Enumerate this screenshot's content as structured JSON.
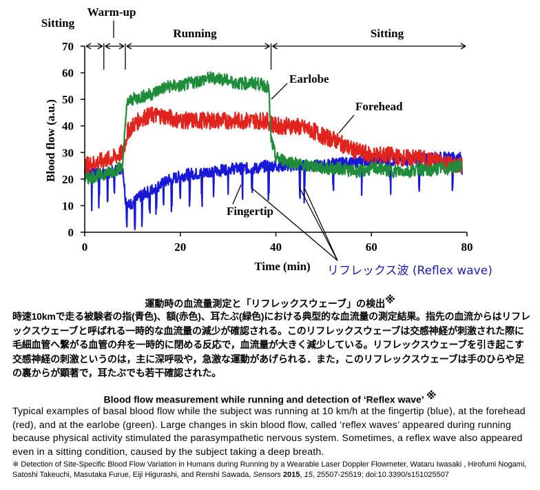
{
  "chart_data": {
    "type": "line",
    "xlabel": "Time (min)",
    "ylabel": "Blood flow (a.u.)",
    "xlim": [
      0,
      80
    ],
    "ylim": [
      0,
      70
    ],
    "xticks": [
      "0",
      "20",
      "40",
      "60",
      "80"
    ],
    "yticks": [
      "0",
      "10",
      "20",
      "30",
      "40",
      "50",
      "60",
      "70"
    ],
    "grid": false,
    "phases": [
      {
        "label": "Sitting",
        "start": 0,
        "end": 4
      },
      {
        "label": "Warm-up",
        "start": 4,
        "end": 8.5
      },
      {
        "label": "Running",
        "start": 8.5,
        "end": 39
      },
      {
        "label": "Sitting",
        "start": 39,
        "end": 80
      }
    ],
    "annotation": "リフレックス波 (Reflex wave)",
    "reflex_wave_times": [
      35,
      45,
      46
    ],
    "series": [
      {
        "name": "Earlobe",
        "color": "#1e8c3a",
        "x": [
          0,
          2,
          4,
          6,
          7,
          8,
          8.5,
          9,
          10,
          12,
          14,
          16,
          18,
          20,
          22,
          24,
          26,
          28,
          30,
          32,
          34,
          36,
          38,
          38.5,
          39,
          40,
          42,
          44,
          46,
          48,
          50,
          52,
          54,
          56,
          58,
          60,
          62,
          64,
          66,
          68,
          70,
          72,
          74,
          76,
          78,
          79
        ],
        "y": [
          20,
          21,
          22,
          23,
          24,
          25,
          42,
          49,
          50,
          51,
          52,
          54,
          55,
          55,
          56,
          57,
          58,
          58,
          57,
          56,
          56,
          56,
          55,
          54,
          35,
          28,
          27,
          26,
          25,
          25,
          24,
          24,
          24,
          23,
          23,
          24,
          24,
          23,
          23,
          23,
          24,
          23,
          24,
          24,
          25,
          25
        ]
      },
      {
        "name": "Forehead",
        "color": "#e0231c",
        "x": [
          0,
          2,
          4,
          6,
          7,
          8,
          8.5,
          9,
          10,
          12,
          14,
          16,
          18,
          20,
          22,
          24,
          26,
          28,
          30,
          32,
          34,
          36,
          38,
          39,
          40,
          42,
          44,
          46,
          48,
          50,
          52,
          54,
          56,
          58,
          60,
          62,
          64,
          66,
          68,
          70,
          72,
          74,
          76,
          78,
          79
        ],
        "y": [
          25,
          26,
          27,
          28,
          29,
          30,
          34,
          38,
          40,
          43,
          44,
          44,
          43,
          42,
          42,
          42,
          42,
          42,
          42,
          42,
          42,
          42,
          42,
          41,
          40,
          40,
          40,
          39,
          38,
          36,
          35,
          33,
          31,
          30,
          29,
          29,
          29,
          28,
          28,
          28,
          27,
          27,
          26,
          25,
          25
        ]
      },
      {
        "name": "Fingertip",
        "color": "#1818d8",
        "x": [
          0,
          2,
          4,
          6,
          7,
          8,
          8.5,
          9,
          10,
          12,
          14,
          16,
          18,
          20,
          22,
          24,
          26,
          28,
          30,
          32,
          34,
          36,
          38,
          39,
          40,
          42,
          44,
          46,
          48,
          50,
          52,
          54,
          56,
          58,
          60,
          62,
          64,
          66,
          68,
          70,
          72,
          74,
          76,
          78,
          79
        ],
        "y": [
          22,
          23,
          22,
          23,
          24,
          24,
          13,
          10,
          11,
          14,
          16,
          18,
          20,
          21,
          22,
          22,
          23,
          23,
          24,
          24,
          24,
          24,
          25,
          25,
          25,
          25,
          25,
          25,
          25,
          25,
          26,
          26,
          26,
          27,
          27,
          27,
          27,
          27,
          27,
          28,
          28,
          28,
          28,
          28,
          28
        ]
      }
    ]
  },
  "jp": {
    "title": "運動時の血流量測定と「リフレックスウェーブ」の検出",
    "mark": "※",
    "body": "時速10kmで走る被験者の指(青色)、額(赤色)、耳たぶ(緑色)における典型的な血流量の測定結果。指先の血流からはリフレックスウェーブと呼ばれる一時的な血流量の減少が確認される。このリフレックスウェーブは交感神経が刺激された際に毛細血管へ繋がる血管の弁を一時的に閉める反応で，血流量が大きく減少している。リフレックスウェーブを引き起こす交感神経の刺激というのは，主に深呼吸や，急激な運動があげられる．また，このリフレックスウェーブは手のひらや足の裏からが顕著で，耳たぶでも若干確認された。"
  },
  "en": {
    "title": "Blood flow measurement while running and detection of ‘Reflex wave’",
    "mark": "※",
    "body": "Typical examples of basal blood flow while the subject was running at 10 km/h at the fingertip (blue), at the forehead (red), and at the earlobe (green). Large changes in skin blood flow, called ‘reflex waves’ appeared during running because physical activity stimulated the parasympathetic nervous system. Sometimes, a reflex wave also appeared even in a sitting condition, caused by the subject taking a deep breath."
  },
  "citation": {
    "prefix": "※ Detection of Site-Specific Blood Flow Variation in Humans during Running by a Wearable Laser Doppler Flowmeter, Wataru Iwasaki , Hirofumi Nogami, Satoshi Takeuchi, Masutaka Furue, Eiji Higurashi, and Renshi Sawada, ",
    "journal": "Sensors",
    "year": "2015",
    "volume": "15",
    "rest": ", 25507-25519; doi:10.3390/s151025507"
  }
}
